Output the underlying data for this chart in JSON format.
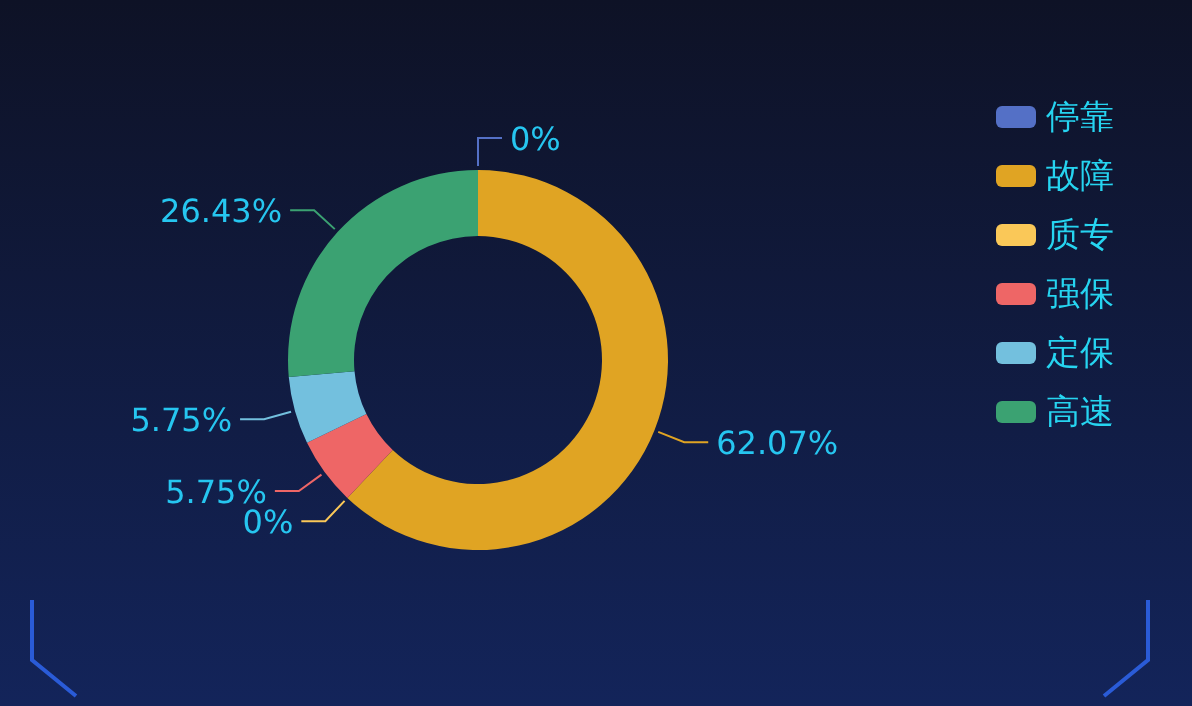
{
  "chart_data": {
    "type": "donut",
    "categories": [
      "停靠",
      "故障",
      "质专",
      "强保",
      "定保",
      "高速"
    ],
    "values": [
      0,
      62.07,
      0,
      5.75,
      5.75,
      26.43
    ],
    "colors": [
      "#5470c6",
      "#e0a423",
      "#fac858",
      "#ee6666",
      "#73c0de",
      "#3ba272"
    ],
    "value_labels": [
      "0%",
      "62.07%",
      "0%",
      "5.75%",
      "5.75%",
      "26.43%"
    ],
    "legend": "right"
  }
}
